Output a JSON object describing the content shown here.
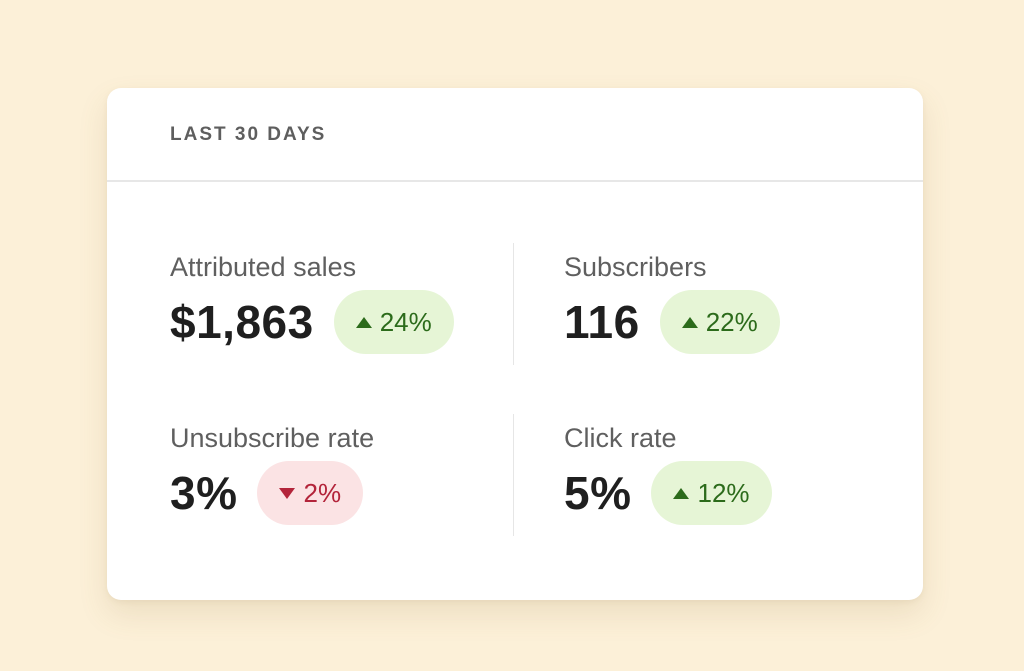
{
  "card": {
    "header_title": "LAST 30 DAYS"
  },
  "metrics": [
    {
      "label": "Attributed sales",
      "value": "$1,863",
      "change": "24%",
      "direction": "up"
    },
    {
      "label": "Subscribers",
      "value": "116",
      "change": "22%",
      "direction": "up"
    },
    {
      "label": "Unsubscribe rate",
      "value": "3%",
      "change": "2%",
      "direction": "down"
    },
    {
      "label": "Click rate",
      "value": "5%",
      "change": "12%",
      "direction": "up"
    }
  ],
  "colors": {
    "page_background": "#fcf0d8",
    "positive_badge_bg": "#e6f5d6",
    "positive_text": "#2c6b1b",
    "negative_badge_bg": "#fbe3e4",
    "negative_text": "#b3243a"
  },
  "icons": {
    "up": "triangle-up-icon",
    "down": "triangle-down-icon"
  }
}
